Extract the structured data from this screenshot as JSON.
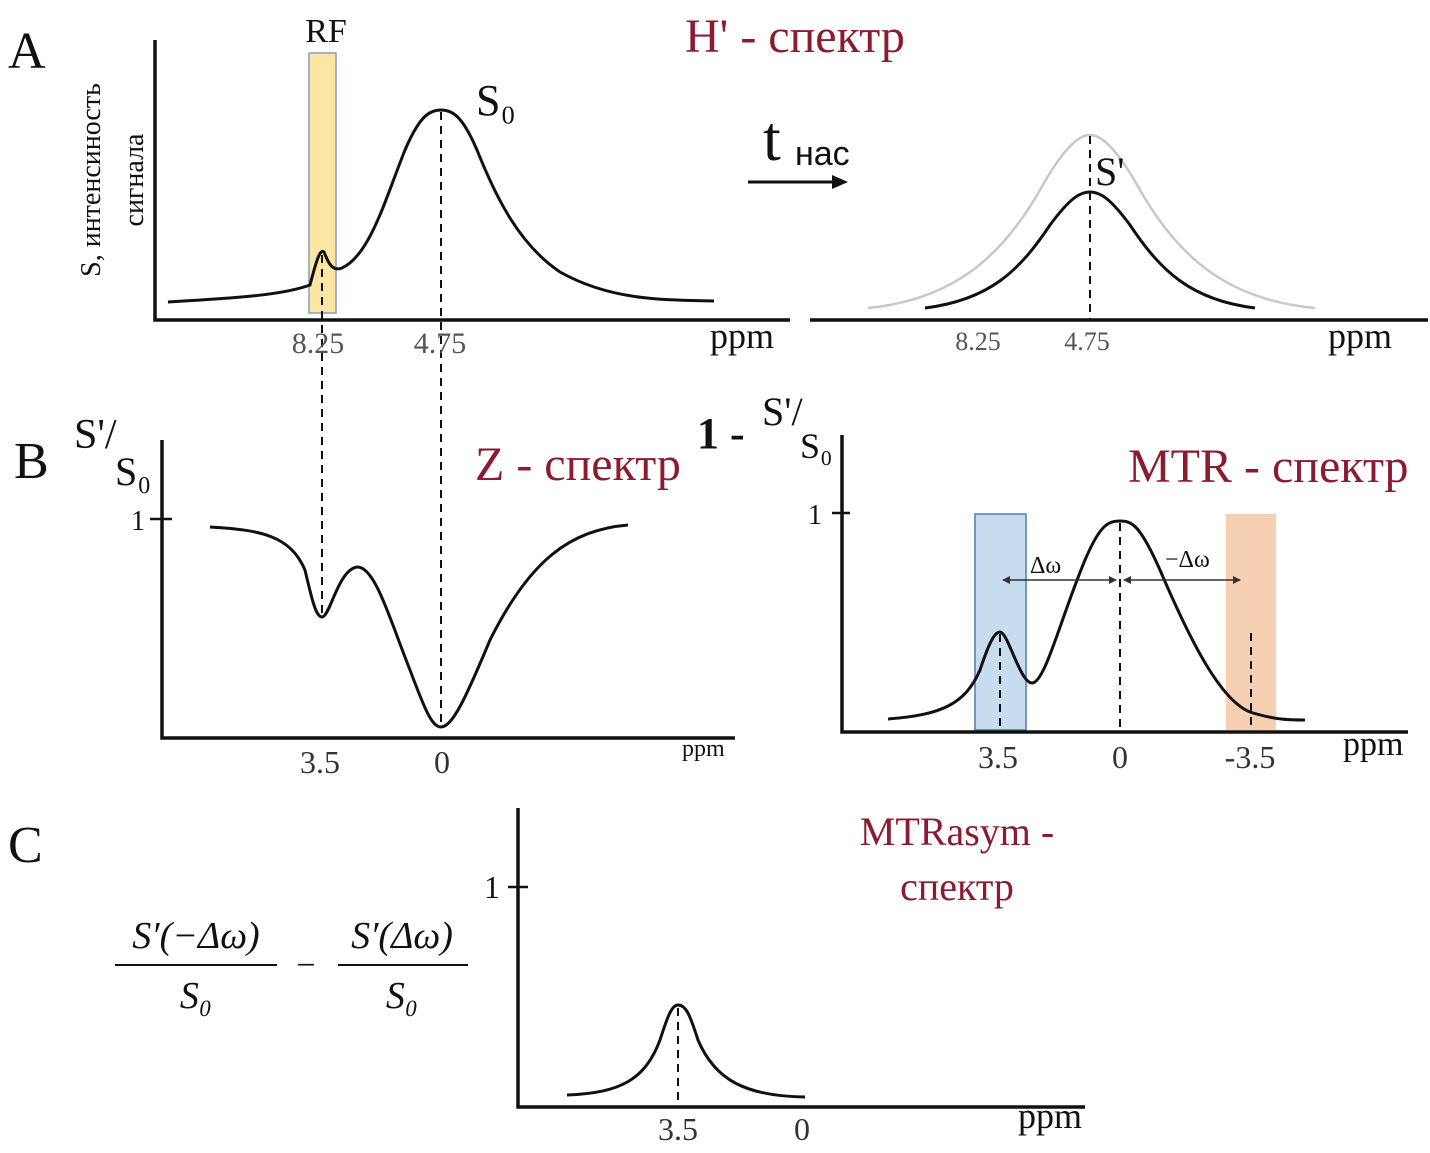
{
  "panelA": {
    "label": "A",
    "title": "H' - спектр",
    "ylabel_line1": "S, интенсиность",
    "ylabel_line2": "сигнала",
    "rf_label": "RF",
    "peak_label": "S₀",
    "x_ticks": [
      "8.25",
      "4.75"
    ],
    "x_unit": "ppm",
    "arrow_label": "t",
    "arrow_subscript": "нас",
    "right_peak_label": "S'",
    "right_x_ticks": [
      "8.25",
      "4.75"
    ],
    "right_x_unit": "ppm",
    "rf_band_color": "#fde6a4"
  },
  "panelB": {
    "label": "B",
    "z_title": "Z - спектр",
    "z_ylabel_num": "S'/",
    "z_ylabel_den": "S₀",
    "z_y_tick": "1",
    "z_x_ticks": [
      "3.5",
      "0"
    ],
    "z_x_unit": "ppm",
    "mtr_title": "MTR - спектр",
    "mtr_ylabel_prefix": "1 -",
    "mtr_ylabel_num": "S'/",
    "mtr_ylabel_den": "S₀",
    "mtr_y_tick": "1",
    "mtr_x_ticks": [
      "3.5",
      "0",
      "-3.5"
    ],
    "mtr_x_unit": "ppm",
    "delta_pos": "Δω",
    "delta_neg": "−Δω",
    "band_pos_color": "#c8dcf0",
    "band_neg_color": "#f7d0b3"
  },
  "panelC": {
    "label": "C",
    "formula_num1": "S′(−Δω)",
    "formula_den1": "S₀",
    "formula_minus": "−",
    "formula_num2": "S′(Δω)",
    "formula_den2": "S₀",
    "title_line1": "MTRasym -",
    "title_line2": "спектр",
    "y_tick": "1",
    "x_ticks": [
      "3.5",
      "0"
    ],
    "x_unit": "ppm"
  },
  "colors": {
    "title": "#8a1b30",
    "curve": "#111111",
    "reference_curve": "#c8c8c8"
  }
}
